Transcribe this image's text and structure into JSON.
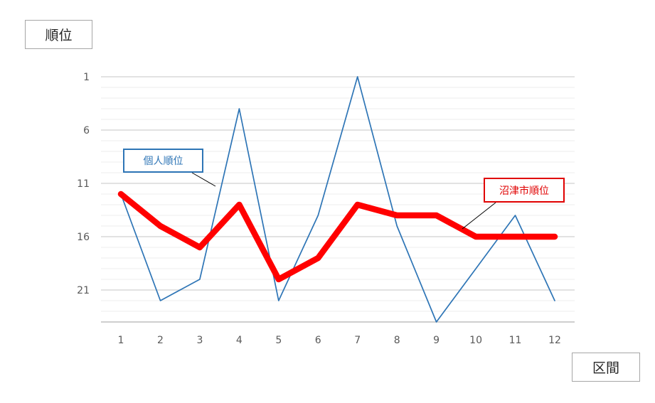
{
  "labels": {
    "y_axis": "順位",
    "x_axis": "区間"
  },
  "colors": {
    "personal": "#2e75b6",
    "city": "#ff0000",
    "city_text": "#e00000",
    "grid_major": "#d9d9d9",
    "grid_minor": "#ececec",
    "axis": "#bfbfbf"
  },
  "chart_data": {
    "type": "line",
    "xlabel": "区間",
    "ylabel": "順位",
    "categories": [
      "1",
      "2",
      "3",
      "4",
      "5",
      "6",
      "7",
      "8",
      "9",
      "10",
      "11",
      "12"
    ],
    "y_reversed": true,
    "ylim": [
      1,
      24
    ],
    "yticks": [
      1,
      6,
      11,
      16,
      21
    ],
    "grid": true,
    "series": [
      {
        "name": "個人順位",
        "key": "personal",
        "values": [
          12,
          22,
          20,
          4,
          22,
          14,
          1,
          15,
          24,
          19,
          14,
          22
        ]
      },
      {
        "name": "沼津市順位",
        "key": "city",
        "values": [
          12,
          15,
          17,
          13,
          20,
          18,
          13,
          14,
          14,
          16,
          16,
          16
        ]
      }
    ]
  }
}
